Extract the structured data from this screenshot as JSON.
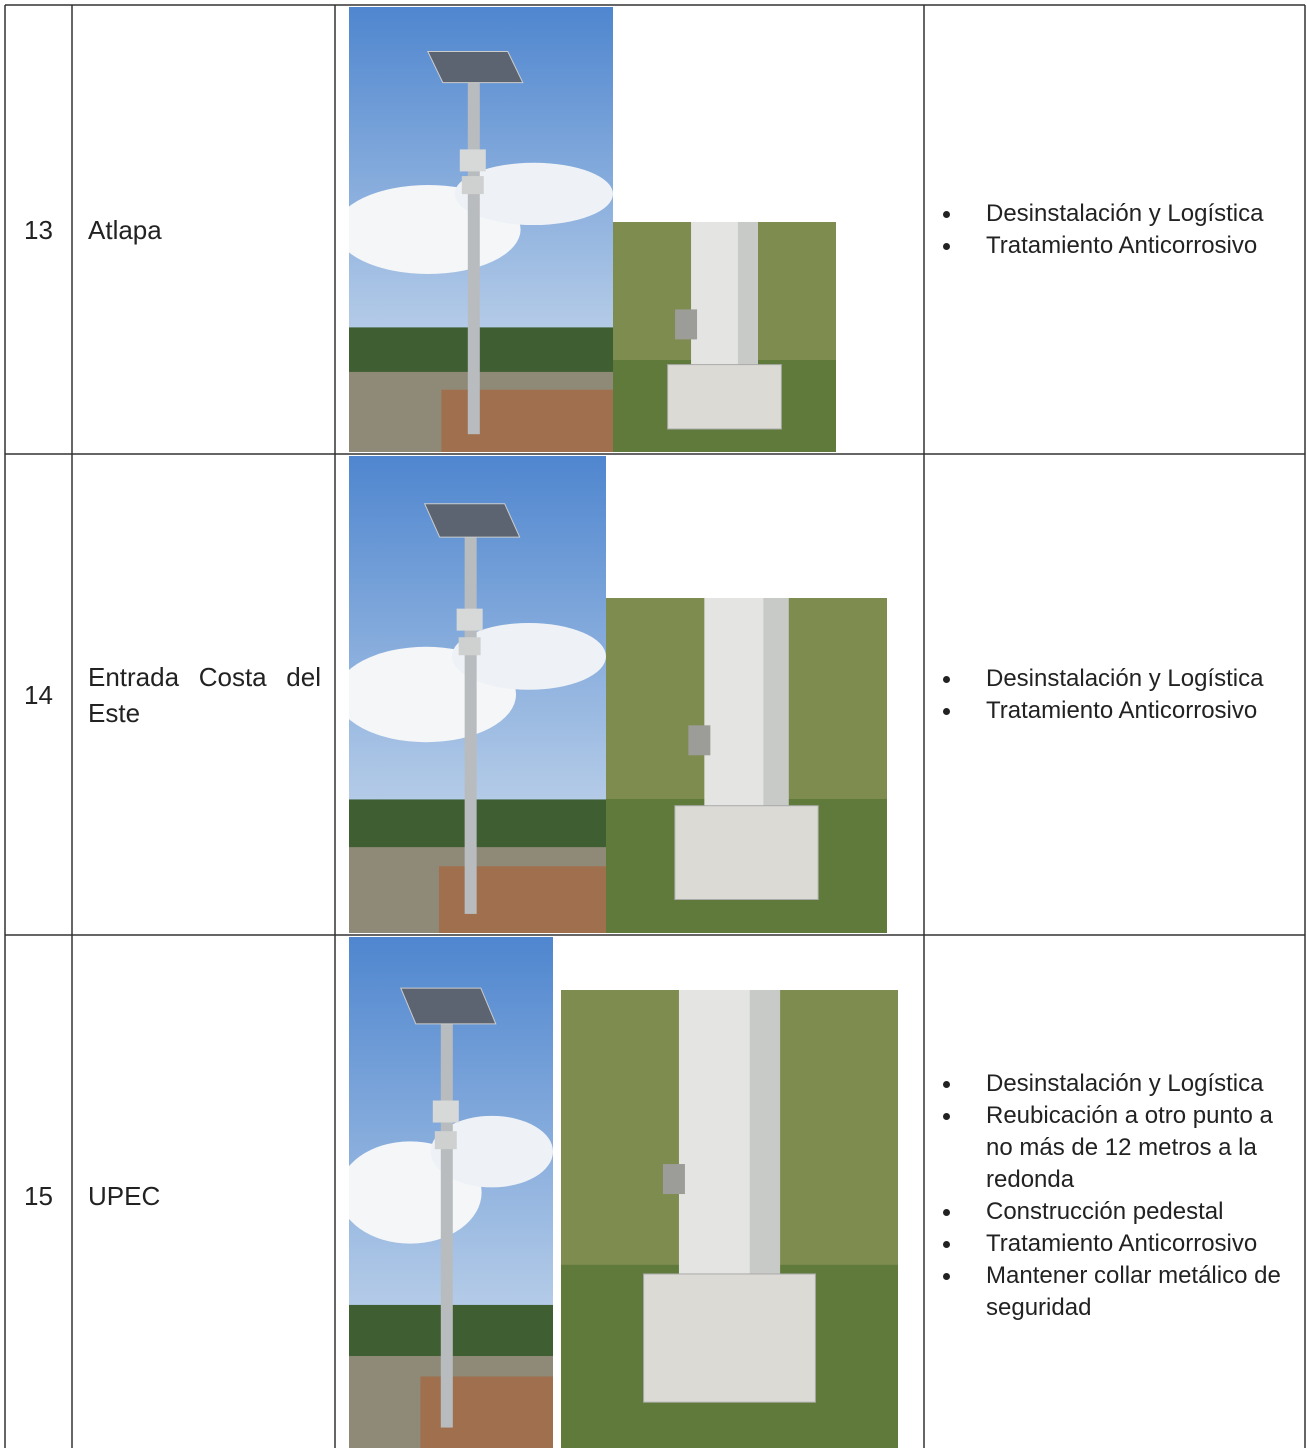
{
  "table": {
    "rows": [
      {
        "number": "13",
        "location": "Atlapa",
        "actions": [
          "Desinstalación y Logística",
          "Tratamiento Anticorrosivo"
        ]
      },
      {
        "number": "14",
        "location": "Entrada Costa del Este",
        "actions": [
          "Desinstalación y Logística",
          "Tratamiento Anticorrosivo"
        ]
      },
      {
        "number": "15",
        "location": "UPEC",
        "actions": [
          "Desinstalación y Logística",
          "Reubicación a otro punto a no más de 12 metros a la redonda",
          "Construcción pedestal",
          "Tratamiento Anticorrosivo",
          "Mantener collar metálico de seguridad"
        ]
      }
    ]
  }
}
